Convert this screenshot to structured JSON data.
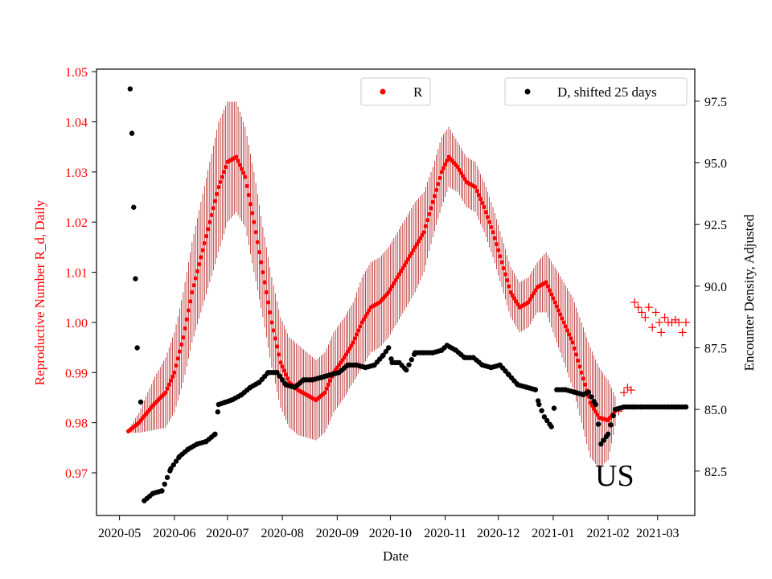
{
  "chart_data": {
    "type": "scatter",
    "title": "",
    "annotation": "US",
    "xlabel": "Date",
    "ylabel_left": "Reproductive Number R_d, Daily",
    "ylabel_right": "Encounter Density, Adjusted",
    "xlim": [
      "2020-04-18",
      "2021-03-22"
    ],
    "ylim_left": [
      0.9615,
      1.0505
    ],
    "ylim_right": [
      80.7,
      98.8
    ],
    "x_ticks": [
      "2020-05",
      "2020-06",
      "2020-07",
      "2020-08",
      "2020-09",
      "2020-10",
      "2020-11",
      "2020-12",
      "2021-01",
      "2021-02",
      "2021-03"
    ],
    "y_ticks_left": [
      "0.97",
      "0.98",
      "0.99",
      "1.00",
      "1.01",
      "1.02",
      "1.03",
      "1.04",
      "1.05"
    ],
    "y_ticks_right": [
      "82.5",
      "85.0",
      "87.5",
      "90.0",
      "92.5",
      "95.0",
      "97.5"
    ],
    "grid": false,
    "colors": {
      "R": "#ff0000",
      "R_error": "#aa0000",
      "D": "#000000",
      "left_axis": "#ff0000"
    },
    "legend": [
      {
        "label": "R",
        "color": "#ff0000",
        "placement": "top-center"
      },
      {
        "label": "D, shifted 25 days",
        "color": "#000000",
        "placement": "top-right"
      }
    ],
    "series": [
      {
        "name": "R",
        "axis": "left",
        "marker": "circle",
        "error_bars": true,
        "points": [
          [
            "2020-05-06",
            0.9783,
            0.0003
          ],
          [
            "2020-05-12",
            0.98,
            0.002
          ],
          [
            "2020-05-20",
            0.9835,
            0.005
          ],
          [
            "2020-05-27",
            0.986,
            0.007
          ],
          [
            "2020-06-01",
            0.99,
            0.008
          ],
          [
            "2020-06-06",
            0.997,
            0.009
          ],
          [
            "2020-06-11",
            1.006,
            0.01
          ],
          [
            "2020-06-16",
            1.013,
            0.011
          ],
          [
            "2020-06-21",
            1.02,
            0.012
          ],
          [
            "2020-06-26",
            1.027,
            0.013
          ],
          [
            "2020-07-01",
            1.032,
            0.012
          ],
          [
            "2020-07-06",
            1.033,
            0.011
          ],
          [
            "2020-07-11",
            1.029,
            0.01
          ],
          [
            "2020-07-16",
            1.02,
            0.01
          ],
          [
            "2020-07-21",
            1.01,
            0.009
          ],
          [
            "2020-07-26",
            1.0,
            0.009
          ],
          [
            "2020-07-31",
            0.992,
            0.009
          ],
          [
            "2020-08-05",
            0.988,
            0.009
          ],
          [
            "2020-08-10",
            0.9865,
            0.009
          ],
          [
            "2020-08-15",
            0.9855,
            0.0085
          ],
          [
            "2020-08-20",
            0.9845,
            0.008
          ],
          [
            "2020-08-25",
            0.986,
            0.008
          ],
          [
            "2020-08-30",
            0.99,
            0.008
          ],
          [
            "2020-09-05",
            0.993,
            0.008
          ],
          [
            "2020-09-10",
            0.996,
            0.008
          ],
          [
            "2020-09-15",
            1.0,
            0.009
          ],
          [
            "2020-09-20",
            1.003,
            0.009
          ],
          [
            "2020-09-25",
            1.004,
            0.009
          ],
          [
            "2020-09-30",
            1.006,
            0.009
          ],
          [
            "2020-10-05",
            1.009,
            0.009
          ],
          [
            "2020-10-10",
            1.012,
            0.009
          ],
          [
            "2020-10-15",
            1.015,
            0.009
          ],
          [
            "2020-10-20",
            1.018,
            0.008
          ],
          [
            "2020-10-25",
            1.024,
            0.007
          ],
          [
            "2020-10-30",
            1.03,
            0.007
          ],
          [
            "2020-11-03",
            1.033,
            0.006
          ],
          [
            "2020-11-08",
            1.031,
            0.005
          ],
          [
            "2020-11-13",
            1.028,
            0.005
          ],
          [
            "2020-11-18",
            1.027,
            0.005
          ],
          [
            "2020-11-23",
            1.023,
            0.005
          ],
          [
            "2020-11-28",
            1.018,
            0.005
          ],
          [
            "2020-12-03",
            1.012,
            0.005
          ],
          [
            "2020-12-08",
            1.006,
            0.005
          ],
          [
            "2020-12-13",
            1.003,
            0.005
          ],
          [
            "2020-12-18",
            1.004,
            0.005
          ],
          [
            "2020-12-23",
            1.007,
            0.005
          ],
          [
            "2020-12-28",
            1.008,
            0.006
          ],
          [
            "2021-01-02",
            1.004,
            0.007
          ],
          [
            "2021-01-07",
            1.0,
            0.008
          ],
          [
            "2021-01-12",
            0.996,
            0.009
          ],
          [
            "2021-01-17",
            0.99,
            0.01
          ],
          [
            "2021-01-22",
            0.984,
            0.011
          ],
          [
            "2021-01-27",
            0.981,
            0.01
          ],
          [
            "2021-02-01",
            0.9805,
            0.008
          ],
          [
            "2021-02-05",
            0.9823,
            0.003
          ]
        ]
      },
      {
        "name": "R (plus markers)",
        "axis": "left",
        "marker": "plus",
        "points": [
          [
            "2021-02-07",
            0.9823
          ],
          [
            "2021-02-10",
            0.986
          ],
          [
            "2021-02-12",
            0.987
          ],
          [
            "2021-02-14",
            0.9865
          ],
          [
            "2021-02-16",
            1.004
          ],
          [
            "2021-02-18",
            1.003
          ],
          [
            "2021-02-20",
            1.002
          ],
          [
            "2021-02-22",
            1.001
          ],
          [
            "2021-02-24",
            1.003
          ],
          [
            "2021-02-26",
            0.999
          ],
          [
            "2021-02-28",
            1.002
          ],
          [
            "2021-03-02",
            1.0
          ],
          [
            "2021-03-03",
            0.998
          ],
          [
            "2021-03-05",
            1.001
          ],
          [
            "2021-03-07",
            1.0
          ],
          [
            "2021-03-09",
            1.0
          ],
          [
            "2021-03-11",
            1.0005
          ],
          [
            "2021-03-13",
            1.0
          ],
          [
            "2021-03-15",
            0.998
          ],
          [
            "2021-03-17",
            1.0
          ]
        ]
      },
      {
        "name": "D, shifted 25 days",
        "axis": "right",
        "marker": "circle",
        "points": [
          [
            "2020-05-07",
            98.0
          ],
          [
            "2020-05-08",
            96.2
          ],
          [
            "2020-05-09",
            93.2
          ],
          [
            "2020-05-10",
            90.3
          ],
          [
            "2020-05-11",
            87.5
          ],
          [
            "2020-05-13",
            85.3
          ],
          [
            "2020-05-15",
            81.3
          ],
          [
            "2020-05-20",
            81.6
          ],
          [
            "2020-05-25",
            81.7
          ],
          [
            "2020-05-30",
            82.6
          ],
          [
            "2020-06-04",
            83.1
          ],
          [
            "2020-06-09",
            83.4
          ],
          [
            "2020-06-14",
            83.6
          ],
          [
            "2020-06-19",
            83.7
          ],
          [
            "2020-06-24",
            84.0
          ],
          [
            "2020-06-26",
            85.2
          ],
          [
            "2020-06-30",
            85.3
          ],
          [
            "2020-07-04",
            85.4
          ],
          [
            "2020-07-09",
            85.6
          ],
          [
            "2020-07-14",
            85.9
          ],
          [
            "2020-07-19",
            86.1
          ],
          [
            "2020-07-24",
            86.5
          ],
          [
            "2020-07-29",
            86.5
          ],
          [
            "2020-08-03",
            86.0
          ],
          [
            "2020-08-08",
            85.9
          ],
          [
            "2020-08-13",
            86.2
          ],
          [
            "2020-08-18",
            86.2
          ],
          [
            "2020-08-23",
            86.3
          ],
          [
            "2020-08-28",
            86.4
          ],
          [
            "2020-09-02",
            86.5
          ],
          [
            "2020-09-07",
            86.8
          ],
          [
            "2020-09-12",
            86.8
          ],
          [
            "2020-09-17",
            86.7
          ],
          [
            "2020-09-22",
            86.8
          ],
          [
            "2020-09-27",
            87.2
          ],
          [
            "2020-09-30",
            87.5
          ],
          [
            "2020-10-02",
            86.9
          ],
          [
            "2020-10-06",
            86.9
          ],
          [
            "2020-10-10",
            86.6
          ],
          [
            "2020-10-15",
            87.3
          ],
          [
            "2020-10-20",
            87.3
          ],
          [
            "2020-10-25",
            87.3
          ],
          [
            "2020-10-30",
            87.4
          ],
          [
            "2020-11-02",
            87.6
          ],
          [
            "2020-11-07",
            87.4
          ],
          [
            "2020-11-12",
            87.1
          ],
          [
            "2020-11-17",
            87.1
          ],
          [
            "2020-11-22",
            86.8
          ],
          [
            "2020-11-27",
            86.7
          ],
          [
            "2020-12-02",
            86.8
          ],
          [
            "2020-12-07",
            86.4
          ],
          [
            "2020-12-12",
            86.0
          ],
          [
            "2020-12-17",
            85.9
          ],
          [
            "2020-12-22",
            85.8
          ],
          [
            "2020-12-24",
            85.2
          ],
          [
            "2020-12-27",
            84.7
          ],
          [
            "2020-12-31",
            84.3
          ],
          [
            "2021-01-03",
            85.8
          ],
          [
            "2021-01-08",
            85.8
          ],
          [
            "2021-01-13",
            85.7
          ],
          [
            "2021-01-18",
            85.6
          ],
          [
            "2021-01-21",
            85.7
          ],
          [
            "2021-01-25",
            85.2
          ],
          [
            "2021-01-28",
            83.6
          ],
          [
            "2021-02-01",
            84.0
          ],
          [
            "2021-02-05",
            85.0
          ],
          [
            "2021-02-10",
            85.1
          ],
          [
            "2021-02-15",
            85.1
          ],
          [
            "2021-02-20",
            85.1
          ],
          [
            "2021-02-25",
            85.1
          ],
          [
            "2021-03-02",
            85.1
          ],
          [
            "2021-03-07",
            85.1
          ],
          [
            "2021-03-12",
            85.1
          ],
          [
            "2021-03-17",
            85.1
          ]
        ]
      }
    ]
  }
}
